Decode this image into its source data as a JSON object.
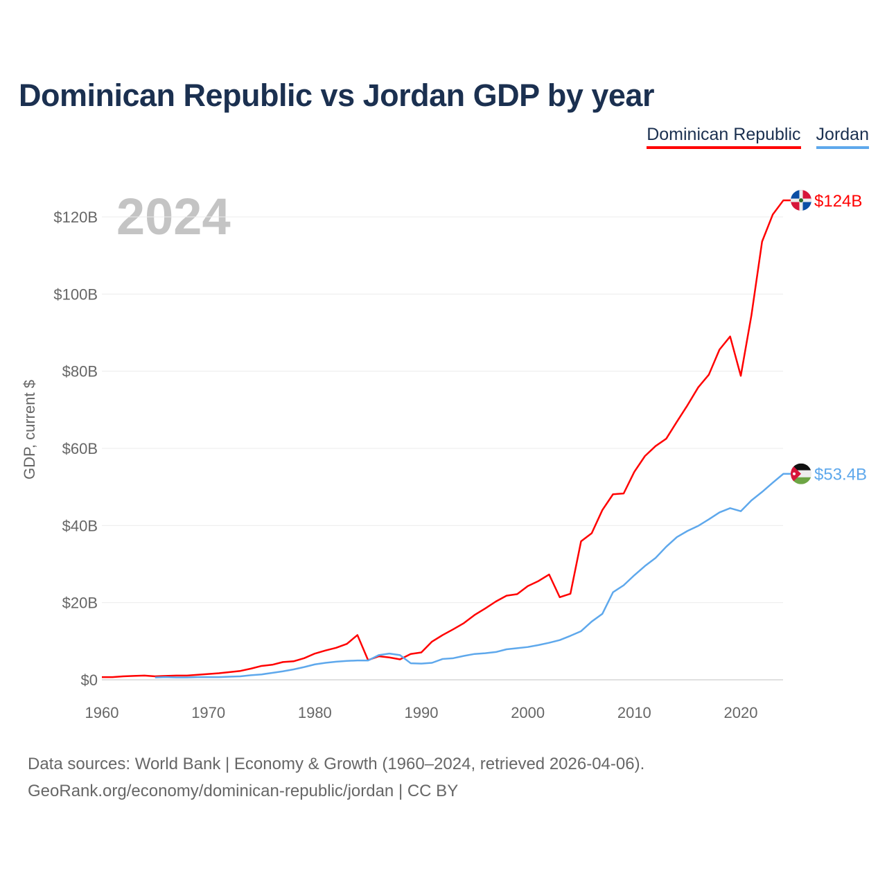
{
  "title": "Dominican Republic vs Jordan GDP by year",
  "legend": [
    "Dominican Republic",
    "Jordan"
  ],
  "year_label": "2024",
  "source_line1": "Data sources: World Bank | Economy & Growth (1960–2024, retrieved 2026-04-06).",
  "source_line2": "GeoRank.org/economy/dominican-republic/jordan | CC BY",
  "chart_data": {
    "type": "line",
    "title": "Dominican Republic vs Jordan GDP by year",
    "xlabel": "",
    "ylabel": "GDP, current $",
    "xlim": [
      1960,
      2024
    ],
    "ylim": [
      0,
      124
    ],
    "xticks": [
      1960,
      1970,
      1980,
      1990,
      2000,
      2010,
      2020
    ],
    "yticks": [
      0,
      20,
      40,
      60,
      80,
      100,
      120
    ],
    "ytick_labels": [
      "$0",
      "$20B",
      "$40B",
      "$60B",
      "$80B",
      "$100B",
      "$120B"
    ],
    "grid": true,
    "legend_position": "top-right",
    "series": [
      {
        "name": "Dominican Republic",
        "color": "#ff0000",
        "end_label": "$124B",
        "start_year": 1960,
        "values": [
          0.7,
          0.7,
          0.9,
          1.0,
          1.1,
          0.9,
          1.0,
          1.1,
          1.1,
          1.3,
          1.5,
          1.7,
          2.0,
          2.3,
          2.9,
          3.6,
          3.9,
          4.6,
          4.8,
          5.6,
          6.8,
          7.6,
          8.3,
          9.3,
          11.6,
          5.1,
          6.1,
          5.8,
          5.3,
          6.7,
          7.1,
          9.9,
          11.6,
          13.1,
          14.7,
          16.8,
          18.5,
          20.3,
          21.8,
          22.2,
          24.3,
          25.6,
          27.3,
          21.4,
          22.3,
          35.9,
          38.0,
          44.0,
          48.1,
          48.3,
          53.9,
          58.0,
          60.6,
          62.5,
          66.9,
          71.2,
          75.8,
          79.1,
          85.6,
          89.0,
          78.8,
          94.5,
          113.6,
          120.6,
          124.3
        ]
      },
      {
        "name": "Jordan",
        "color": "#5ea8ec",
        "end_label": "$53.4B",
        "start_year": 1965,
        "values": [
          0.6,
          0.7,
          0.6,
          0.6,
          0.7,
          0.7,
          0.7,
          0.8,
          0.9,
          1.2,
          1.4,
          1.8,
          2.2,
          2.7,
          3.3,
          4.0,
          4.4,
          4.7,
          4.9,
          5.0,
          5.0,
          6.4,
          6.8,
          6.4,
          4.3,
          4.2,
          4.4,
          5.4,
          5.6,
          6.2,
          6.7,
          6.9,
          7.2,
          7.9,
          8.2,
          8.5,
          9.0,
          9.6,
          10.3,
          11.4,
          12.6,
          15.1,
          17.1,
          22.7,
          24.5,
          27.1,
          29.5,
          31.6,
          34.5,
          37.0,
          38.6,
          39.9,
          41.6,
          43.4,
          44.5,
          43.7,
          46.5,
          48.7,
          51.1,
          53.4
        ]
      }
    ]
  }
}
